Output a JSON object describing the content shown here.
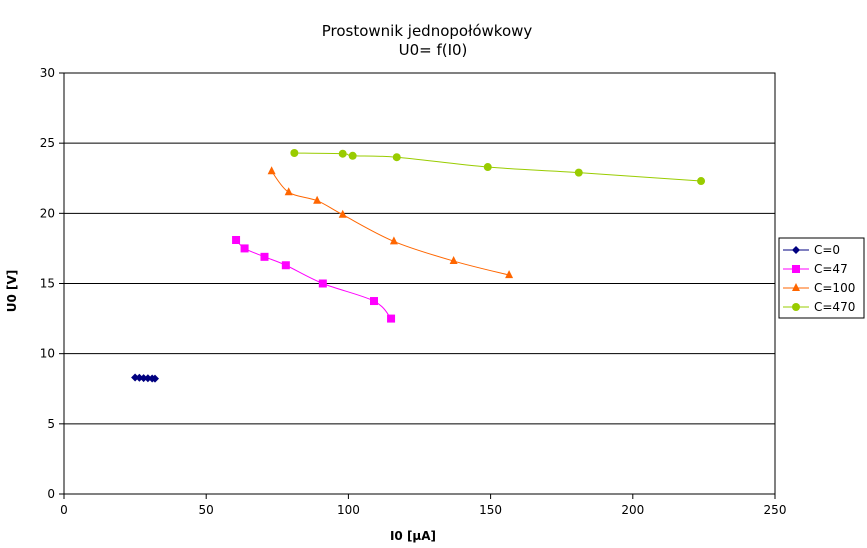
{
  "chart_data": {
    "type": "scatter",
    "title": "Prostownik jednopołówkowy",
    "subtitle": "U0= f(I0)",
    "xlabel": "I0 [µA]",
    "ylabel": "U0 [V]",
    "xlim": [
      0,
      250
    ],
    "ylim": [
      0,
      30
    ],
    "xticks": [
      0,
      50,
      100,
      150,
      200,
      250
    ],
    "yticks": [
      0,
      5,
      10,
      15,
      20,
      25,
      30
    ],
    "x_tick_labels": [
      "0",
      "50",
      "100",
      "150",
      "200",
      "250"
    ],
    "y_tick_labels": [
      "0",
      "5",
      "10",
      "15",
      "20",
      "25",
      "30"
    ],
    "grid": {
      "horizontal": true,
      "vertical": false
    },
    "legend_position": "right",
    "series": [
      {
        "name": "C=0",
        "color": "#000080",
        "marker": "diamond",
        "points": [
          {
            "x": 25,
            "y": 8.3
          },
          {
            "x": 26.5,
            "y": 8.28
          },
          {
            "x": 28,
            "y": 8.26
          },
          {
            "x": 29.5,
            "y": 8.25
          },
          {
            "x": 31,
            "y": 8.23
          },
          {
            "x": 32,
            "y": 8.22
          }
        ]
      },
      {
        "name": "C=47",
        "color": "#ff00ff",
        "marker": "square",
        "points": [
          {
            "x": 60.5,
            "y": 18.1
          },
          {
            "x": 63.5,
            "y": 17.5
          },
          {
            "x": 70.5,
            "y": 16.9
          },
          {
            "x": 78,
            "y": 16.3
          },
          {
            "x": 91,
            "y": 15
          },
          {
            "x": 109,
            "y": 13.75
          },
          {
            "x": 115,
            "y": 12.5
          }
        ]
      },
      {
        "name": "C=100",
        "color": "#ff6600",
        "marker": "triangle",
        "points": [
          {
            "x": 73,
            "y": 23
          },
          {
            "x": 79,
            "y": 21.5
          },
          {
            "x": 89,
            "y": 20.9
          },
          {
            "x": 98,
            "y": 19.9
          },
          {
            "x": 116,
            "y": 18
          },
          {
            "x": 137,
            "y": 16.6
          },
          {
            "x": 156.5,
            "y": 15.6
          }
        ]
      },
      {
        "name": "C=470",
        "color": "#99cc00",
        "marker": "circle",
        "points": [
          {
            "x": 81,
            "y": 24.3
          },
          {
            "x": 98,
            "y": 24.25
          },
          {
            "x": 101.5,
            "y": 24.1
          },
          {
            "x": 117,
            "y": 24
          },
          {
            "x": 149,
            "y": 23.3
          },
          {
            "x": 181,
            "y": 22.9
          },
          {
            "x": 224,
            "y": 22.3
          }
        ]
      }
    ]
  }
}
